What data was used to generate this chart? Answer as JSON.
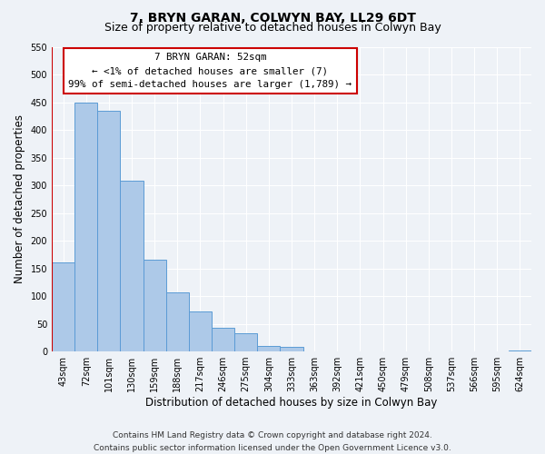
{
  "title": "7, BRYN GARAN, COLWYN BAY, LL29 6DT",
  "subtitle": "Size of property relative to detached houses in Colwyn Bay",
  "xlabel": "Distribution of detached houses by size in Colwyn Bay",
  "ylabel": "Number of detached properties",
  "bin_labels": [
    "43sqm",
    "72sqm",
    "101sqm",
    "130sqm",
    "159sqm",
    "188sqm",
    "217sqm",
    "246sqm",
    "275sqm",
    "304sqm",
    "333sqm",
    "363sqm",
    "392sqm",
    "421sqm",
    "450sqm",
    "479sqm",
    "508sqm",
    "537sqm",
    "566sqm",
    "595sqm",
    "624sqm"
  ],
  "bar_values": [
    160,
    450,
    435,
    308,
    165,
    107,
    73,
    42,
    33,
    10,
    8,
    0,
    0,
    0,
    0,
    0,
    0,
    0,
    0,
    0,
    2
  ],
  "bar_color": "#adc9e8",
  "bar_edge_color": "#5b9bd5",
  "marker_color": "#cc0000",
  "annotation_title": "7 BRYN GARAN: 52sqm",
  "annotation_line1": "← <1% of detached houses are smaller (7)",
  "annotation_line2": "99% of semi-detached houses are larger (1,789) →",
  "annotation_box_color": "#ffffff",
  "annotation_box_edge": "#cc0000",
  "ylim": [
    0,
    550
  ],
  "yticks": [
    0,
    50,
    100,
    150,
    200,
    250,
    300,
    350,
    400,
    450,
    500,
    550
  ],
  "footer_line1": "Contains HM Land Registry data © Crown copyright and database right 2024.",
  "footer_line2": "Contains public sector information licensed under the Open Government Licence v3.0.",
  "bg_color": "#eef2f7",
  "grid_color": "#ffffff",
  "title_fontsize": 10,
  "subtitle_fontsize": 9,
  "axis_label_fontsize": 8.5,
  "tick_fontsize": 7,
  "footer_fontsize": 6.5,
  "annotation_fontsize": 7.8
}
